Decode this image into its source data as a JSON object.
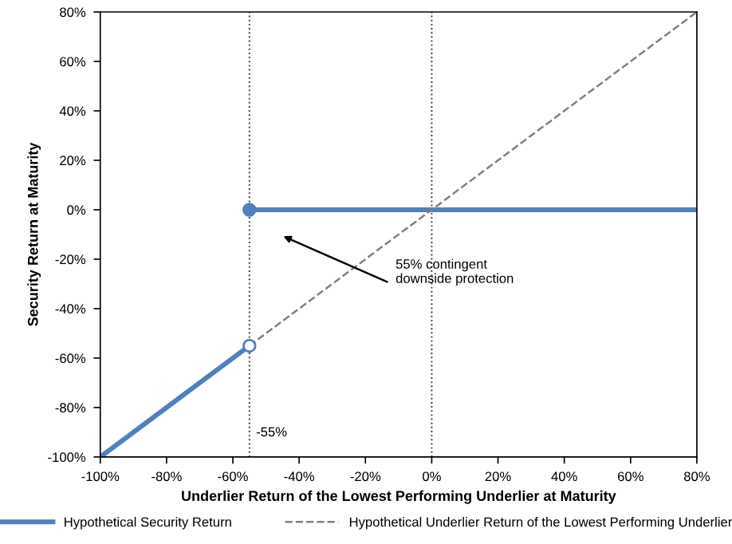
{
  "chart_data": {
    "type": "line",
    "xlabel": "Underlier Return of the Lowest Performing Underlier at Maturity",
    "ylabel": "Security Return at Maturity",
    "xlim": [
      -100,
      80
    ],
    "ylim": [
      -100,
      80
    ],
    "xticks": [
      {
        "value": -100,
        "label": "-100%"
      },
      {
        "value": -80,
        "label": "-80%"
      },
      {
        "value": -60,
        "label": "-60%"
      },
      {
        "value": -40,
        "label": "-40%"
      },
      {
        "value": -20,
        "label": "-20%"
      },
      {
        "value": 0,
        "label": "0%"
      },
      {
        "value": 20,
        "label": "20%"
      },
      {
        "value": 40,
        "label": "40%"
      },
      {
        "value": 60,
        "label": "60%"
      },
      {
        "value": 80,
        "label": "80%"
      }
    ],
    "yticks": [
      {
        "value": -100,
        "label": "-100%"
      },
      {
        "value": -80,
        "label": "-80%"
      },
      {
        "value": -60,
        "label": "-60%"
      },
      {
        "value": -40,
        "label": "-40%"
      },
      {
        "value": -20,
        "label": "-20%"
      },
      {
        "value": 0,
        "label": "0%"
      },
      {
        "value": 20,
        "label": "20%"
      },
      {
        "value": 40,
        "label": "40%"
      },
      {
        "value": 60,
        "label": "60%"
      },
      {
        "value": 80,
        "label": "80%"
      }
    ],
    "series": [
      {
        "name": "Hypothetical Security Return",
        "color": "#4f81bd",
        "line_style": "solid",
        "x": [
          -100,
          -55
        ],
        "values": [
          -100,
          -55
        ]
      },
      {
        "color": "#4f81bd",
        "line_style": "solid",
        "x": [
          -55,
          80
        ],
        "values": [
          0,
          0
        ]
      },
      {
        "name": "Hypothetical Underlier Return of the Lowest Performing Underlier",
        "color": "#808080",
        "line_style": "dashed",
        "x": [
          -55,
          80
        ],
        "values": [
          -55,
          80
        ]
      },
      {
        "type": "scatter",
        "marker": "circle",
        "color": "#4f81bd",
        "colors": [
          "#4f81bd",
          "#ffffff"
        ],
        "x": [
          -55,
          -55
        ],
        "values": [
          0,
          -55
        ]
      }
    ],
    "ref_lines": [
      {
        "axis": "x",
        "value": -55,
        "label": "-55%",
        "color": "#404040",
        "line_style": "dotted"
      },
      {
        "axis": "x",
        "value": 0,
        "color": "#404040",
        "line_style": "dotted"
      }
    ],
    "annotations": [
      "55% contingent\ndownside protection"
    ],
    "grid": false,
    "legend": "bottom"
  }
}
